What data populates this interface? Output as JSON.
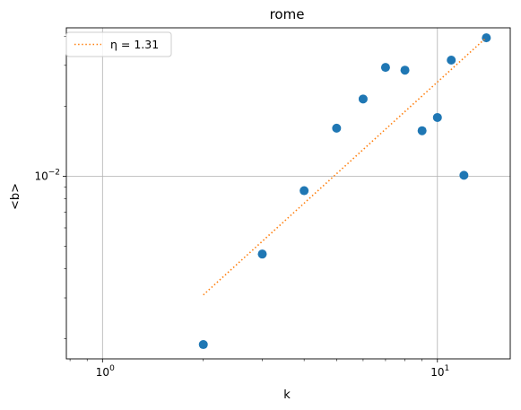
{
  "chart_data": {
    "type": "scatter",
    "title": "rome",
    "xlabel": "k",
    "ylabel": "<b>",
    "xscale": "log",
    "yscale": "log",
    "xlim": [
      0.78,
      16.5
    ],
    "ylim": [
      0.00164,
      0.0435
    ],
    "x_ticks": [
      {
        "value": 1,
        "base": "10",
        "exp": "0"
      },
      {
        "value": 10,
        "base": "10",
        "exp": "1"
      }
    ],
    "y_ticks": [
      {
        "value": 0.01,
        "base": "10",
        "exp": "−2"
      }
    ],
    "grid": true,
    "legend_position": "top-left",
    "colors": {
      "points": "#1f77b4",
      "fit": "#ff7f0e"
    },
    "series": [
      {
        "kind": "points",
        "x": [
          2,
          3,
          4,
          5,
          6,
          7,
          8,
          9,
          10,
          11,
          12,
          14
        ],
        "y": [
          0.00189,
          0.00463,
          0.00867,
          0.0161,
          0.0215,
          0.0294,
          0.0286,
          0.0157,
          0.0179,
          0.0316,
          0.0101,
          0.0394
        ]
      },
      {
        "kind": "fit-line",
        "name": "η = 1.31",
        "x": [
          2,
          14
        ],
        "y": [
          0.00309,
          0.0395
        ]
      }
    ]
  }
}
